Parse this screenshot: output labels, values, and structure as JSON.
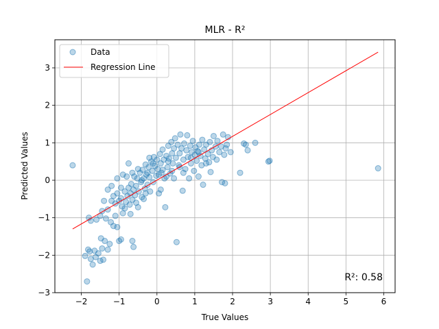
{
  "chart_data": {
    "type": "scatter",
    "title": "MLR - R²",
    "xlabel": "True Values",
    "ylabel": "Predicted Values",
    "xlim": [
      -2.7,
      6.3
    ],
    "ylim": [
      -3.0,
      3.75
    ],
    "xticks": [
      -2,
      -1,
      0,
      1,
      2,
      3,
      4,
      5,
      6
    ],
    "yticks": [
      -3,
      -2,
      -1,
      0,
      1,
      2,
      3
    ],
    "grid": true,
    "legend": {
      "placement": "top-left",
      "entries": [
        "Data",
        "Regression Line"
      ]
    },
    "annotation": "R²: 0.58",
    "colors": {
      "data": "#1f77b4",
      "line": "#ff0000"
    },
    "series": [
      {
        "name": "Data",
        "kind": "scatter",
        "points": [
          [
            -2.23,
            0.4
          ],
          [
            -1.85,
            -2.7
          ],
          [
            -1.9,
            -2.02
          ],
          [
            -1.82,
            -1.85
          ],
          [
            -1.75,
            -2.1
          ],
          [
            -1.7,
            -2.25
          ],
          [
            -1.62,
            -2.05
          ],
          [
            -1.55,
            -1.95
          ],
          [
            -1.5,
            -2.15
          ],
          [
            -1.42,
            -2.12
          ],
          [
            -1.78,
            -1.9
          ],
          [
            -1.65,
            -1.88
          ],
          [
            -1.48,
            -1.55
          ],
          [
            -1.38,
            -1.62
          ],
          [
            -1.3,
            -1.85
          ],
          [
            -1.25,
            -1.7
          ],
          [
            -1.45,
            -1.82
          ],
          [
            -1.8,
            -1.0
          ],
          [
            -1.75,
            -1.08
          ],
          [
            -1.6,
            -1.05
          ],
          [
            -1.5,
            -0.95
          ],
          [
            -1.45,
            -0.82
          ],
          [
            -1.35,
            -1.02
          ],
          [
            -1.3,
            -0.78
          ],
          [
            -1.22,
            -1.12
          ],
          [
            -1.15,
            -1.22
          ],
          [
            -1.05,
            -1.25
          ],
          [
            -1.0,
            -1.62
          ],
          [
            -0.95,
            -1.58
          ],
          [
            -0.65,
            -1.62
          ],
          [
            -0.62,
            -1.78
          ],
          [
            -1.2,
            -0.55
          ],
          [
            -1.15,
            -0.42
          ],
          [
            -1.1,
            -0.62
          ],
          [
            -1.05,
            -0.35
          ],
          [
            -1.0,
            -0.55
          ],
          [
            -0.95,
            -0.48
          ],
          [
            -0.92,
            -0.7
          ],
          [
            -0.9,
            -0.88
          ],
          [
            -0.85,
            -0.3
          ],
          [
            -0.82,
            -0.58
          ],
          [
            -0.78,
            -0.42
          ],
          [
            -0.75,
            -0.2
          ],
          [
            -0.72,
            -0.65
          ],
          [
            -0.7,
            -0.35
          ],
          [
            -0.68,
            -0.1
          ],
          [
            -0.65,
            -0.52
          ],
          [
            -0.62,
            -0.25
          ],
          [
            -0.6,
            0.1
          ],
          [
            -0.58,
            -0.4
          ],
          [
            -0.55,
            -0.15
          ],
          [
            -0.52,
            0.05
          ],
          [
            -0.5,
            -0.72
          ],
          [
            -0.48,
            -0.3
          ],
          [
            -0.45,
            0.2
          ],
          [
            -0.42,
            -0.05
          ],
          [
            -0.4,
            -0.45
          ],
          [
            -0.38,
            0.28
          ],
          [
            -0.35,
            0.05
          ],
          [
            -0.32,
            -0.22
          ],
          [
            -0.3,
            0.42
          ],
          [
            -0.28,
            0.15
          ],
          [
            -0.25,
            -0.12
          ],
          [
            -0.22,
            0.35
          ],
          [
            -0.2,
            0.08
          ],
          [
            -0.18,
            -0.3
          ],
          [
            -0.15,
            0.5
          ],
          [
            -0.12,
            0.25
          ],
          [
            -0.1,
            -0.05
          ],
          [
            -0.08,
            0.62
          ],
          [
            -0.05,
            0.38
          ],
          [
            -0.02,
            0.12
          ],
          [
            0.0,
            0.55
          ],
          [
            0.02,
            0.3
          ],
          [
            0.05,
            -0.35
          ],
          [
            0.08,
            0.7
          ],
          [
            0.1,
            0.45
          ],
          [
            0.12,
            0.2
          ],
          [
            0.15,
            0.82
          ],
          [
            0.18,
            0.55
          ],
          [
            0.2,
            0.05
          ],
          [
            0.22,
            -0.72
          ],
          [
            0.25,
            0.65
          ],
          [
            0.28,
            0.35
          ],
          [
            0.3,
            0.92
          ],
          [
            0.32,
            0.58
          ],
          [
            0.35,
            0.18
          ],
          [
            0.38,
            1.02
          ],
          [
            0.4,
            0.72
          ],
          [
            0.42,
            0.45
          ],
          [
            0.45,
            0.85
          ],
          [
            0.48,
            1.12
          ],
          [
            0.5,
            0.6
          ],
          [
            0.52,
            -1.65
          ],
          [
            0.55,
            0.95
          ],
          [
            0.58,
            0.4
          ],
          [
            0.6,
            0.72
          ],
          [
            0.62,
            1.22
          ],
          [
            0.65,
            0.85
          ],
          [
            0.68,
            -0.28
          ],
          [
            0.7,
            0.55
          ],
          [
            0.72,
            0.98
          ],
          [
            0.75,
            0.3
          ],
          [
            0.78,
            0.8
          ],
          [
            0.8,
            1.2
          ],
          [
            0.82,
            0.62
          ],
          [
            0.85,
            0.05
          ],
          [
            0.88,
            0.92
          ],
          [
            0.9,
            0.45
          ],
          [
            0.92,
            0.75
          ],
          [
            0.95,
            1.05
          ],
          [
            0.98,
            0.25
          ],
          [
            1.0,
            0.68
          ],
          [
            1.02,
            0.88
          ],
          [
            1.05,
            0.52
          ],
          [
            1.08,
            0.78
          ],
          [
            1.1,
            0.1
          ],
          [
            1.12,
            0.95
          ],
          [
            1.15,
            0.65
          ],
          [
            1.18,
            0.4
          ],
          [
            1.2,
            1.08
          ],
          [
            1.22,
            -0.12
          ],
          [
            1.25,
            0.82
          ],
          [
            1.28,
            0.58
          ],
          [
            1.3,
            0.95
          ],
          [
            1.35,
            0.7
          ],
          [
            1.38,
            0.48
          ],
          [
            1.4,
            1.02
          ],
          [
            1.42,
            0.22
          ],
          [
            1.45,
            0.8
          ],
          [
            1.48,
            0.62
          ],
          [
            1.5,
            1.18
          ],
          [
            1.55,
            0.9
          ],
          [
            1.58,
            0.55
          ],
          [
            1.6,
            1.05
          ],
          [
            1.65,
            0.75
          ],
          [
            1.7,
            0.9
          ],
          [
            1.72,
            -0.05
          ],
          [
            1.75,
            1.22
          ],
          [
            1.78,
            0.68
          ],
          [
            1.8,
            -0.08
          ],
          [
            1.82,
            0.85
          ],
          [
            1.85,
            0.95
          ],
          [
            1.88,
            1.15
          ],
          [
            1.95,
            0.75
          ],
          [
            2.2,
            0.2
          ],
          [
            2.3,
            0.98
          ],
          [
            2.35,
            0.95
          ],
          [
            2.4,
            0.8
          ],
          [
            2.6,
            1.0
          ],
          [
            2.95,
            0.5
          ],
          [
            2.98,
            0.52
          ],
          [
            5.85,
            0.32
          ],
          [
            -0.8,
            0.1
          ],
          [
            -0.9,
            0.15
          ],
          [
            -1.05,
            0.05
          ],
          [
            -1.2,
            -0.15
          ],
          [
            -0.4,
            0.0
          ],
          [
            -0.3,
            -0.35
          ],
          [
            0.05,
            0.15
          ],
          [
            0.15,
            0.28
          ],
          [
            0.25,
            0.1
          ],
          [
            -0.1,
            0.45
          ],
          [
            0.4,
            0.25
          ],
          [
            0.6,
            0.35
          ],
          [
            -0.5,
            0.3
          ],
          [
            -0.65,
            0.2
          ],
          [
            -1.3,
            -0.25
          ],
          [
            -1.4,
            -0.55
          ],
          [
            -1.1,
            -0.95
          ],
          [
            -0.85,
            -0.75
          ],
          [
            -0.95,
            -0.2
          ],
          [
            -0.75,
            0.45
          ],
          [
            0.1,
            -0.25
          ],
          [
            0.3,
            0.5
          ],
          [
            0.45,
            0.05
          ],
          [
            0.7,
            0.2
          ],
          [
            0.9,
            0.6
          ],
          [
            1.3,
            0.45
          ],
          [
            1.1,
            0.75
          ],
          [
            -0.2,
            0.6
          ],
          [
            -0.35,
            -0.5
          ],
          [
            -0.55,
            -0.6
          ],
          [
            -0.7,
            -0.9
          ],
          [
            -0.25,
            0.2
          ]
        ]
      },
      {
        "name": "Regression Line",
        "kind": "line",
        "points": [
          [
            -2.23,
            -1.3
          ],
          [
            5.85,
            3.42
          ]
        ]
      }
    ]
  }
}
